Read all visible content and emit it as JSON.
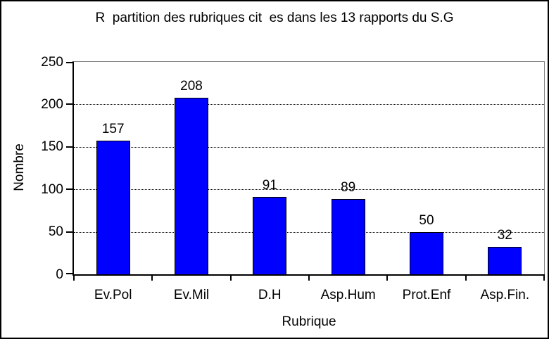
{
  "chart_data": {
    "type": "bar",
    "title": "R  partition des rubriques cit  es dans les 13 rapports du S.G",
    "categories": [
      "Ev.Pol",
      "Ev.Mil",
      "D.H",
      "Asp.Hum",
      "Prot.Enf",
      "Asp.Fin."
    ],
    "values": [
      157,
      208,
      91,
      89,
      50,
      32
    ],
    "xlabel": "Rubrique",
    "ylabel": "Nombre",
    "ylim": [
      0,
      250
    ],
    "yticks": [
      0,
      50,
      100,
      150,
      200,
      250
    ],
    "grid": "horizontal-dotted",
    "legend_position": "none",
    "bar_color": "#0000FF",
    "bar_border_color": "#000000",
    "frame_color": "#848484"
  }
}
